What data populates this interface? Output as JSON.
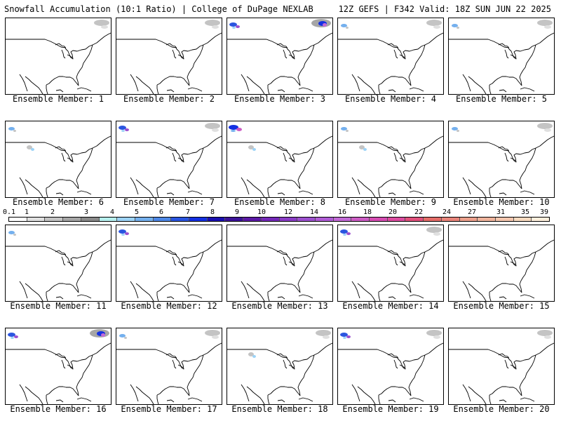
{
  "header": {
    "left": "Snowfall Accumulation (10:1 Ratio) | College of DuPage NEXLAB",
    "right": "12Z GEFS | F342 Valid: 18Z SUN JUN 22 2025"
  },
  "colorbar": {
    "ticks": [
      "0.1",
      "1",
      "2",
      "3",
      "4",
      "5",
      "6",
      "7",
      "8",
      "9",
      "10",
      "12",
      "14",
      "16",
      "18",
      "20",
      "22",
      "24",
      "27",
      "31",
      "35",
      "39"
    ],
    "colors": [
      "#ffffff",
      "#e0e0e0",
      "#c4c4c4",
      "#a6a6a6",
      "#8a8a8a",
      "#b6f0ee",
      "#9cd3f7",
      "#74b0ee",
      "#4d87e6",
      "#2a55e0",
      "#1430e2",
      "#1a10b0",
      "#3c1298",
      "#5c1aa6",
      "#7428b8",
      "#8a3cc6",
      "#9c50cf",
      "#b05cd6",
      "#c26ad6",
      "#cc5cc4",
      "#d64cb2",
      "#dc4ca0",
      "#e0507c",
      "#e46c68",
      "#e8847a",
      "#eca08c",
      "#f0b49c",
      "#f4c6ae",
      "#f8dabf",
      "#fdefdc"
    ]
  },
  "panels": [
    {
      "label": "Ensemble Member: 1",
      "snow": [
        "ne-light"
      ]
    },
    {
      "label": "Ensemble Member: 2",
      "snow": [
        "ne-light"
      ]
    },
    {
      "label": "Ensemble Member: 3",
      "snow": [
        "nw-mod",
        "ne-heavy"
      ]
    },
    {
      "label": "Ensemble Member: 4",
      "snow": [
        "nw-light",
        "ne-light"
      ]
    },
    {
      "label": "Ensemble Member: 5",
      "snow": [
        "nw-light",
        "ne-light"
      ]
    },
    {
      "label": "Ensemble Member: 6",
      "snow": [
        "nw-light",
        "rockies-light"
      ]
    },
    {
      "label": "Ensemble Member: 7",
      "snow": [
        "nw-mod",
        "ne-light"
      ]
    },
    {
      "label": "Ensemble Member: 8",
      "snow": [
        "nw-heavy",
        "rockies-light"
      ]
    },
    {
      "label": "Ensemble Member: 9",
      "snow": [
        "nw-light",
        "rockies-light"
      ]
    },
    {
      "label": "Ensemble Member: 10",
      "snow": [
        "nw-light",
        "ne-light"
      ]
    },
    {
      "label": "Ensemble Member: 11",
      "snow": [
        "nw-light"
      ]
    },
    {
      "label": "Ensemble Member: 12",
      "snow": [
        "nw-mod"
      ]
    },
    {
      "label": "Ensemble Member: 13",
      "snow": []
    },
    {
      "label": "Ensemble Member: 14",
      "snow": [
        "nw-mod",
        "ne-light"
      ]
    },
    {
      "label": "Ensemble Member: 15",
      "snow": []
    },
    {
      "label": "Ensemble Member: 16",
      "snow": [
        "nw-mod",
        "ne-heavy"
      ]
    },
    {
      "label": "Ensemble Member: 17",
      "snow": [
        "nw-light",
        "ne-light"
      ]
    },
    {
      "label": "Ensemble Member: 18",
      "snow": [
        "rockies-light",
        "ne-light"
      ]
    },
    {
      "label": "Ensemble Member: 19",
      "snow": [
        "nw-mod",
        "ne-light"
      ]
    },
    {
      "label": "Ensemble Member: 20",
      "snow": [
        "ne-light"
      ]
    }
  ]
}
